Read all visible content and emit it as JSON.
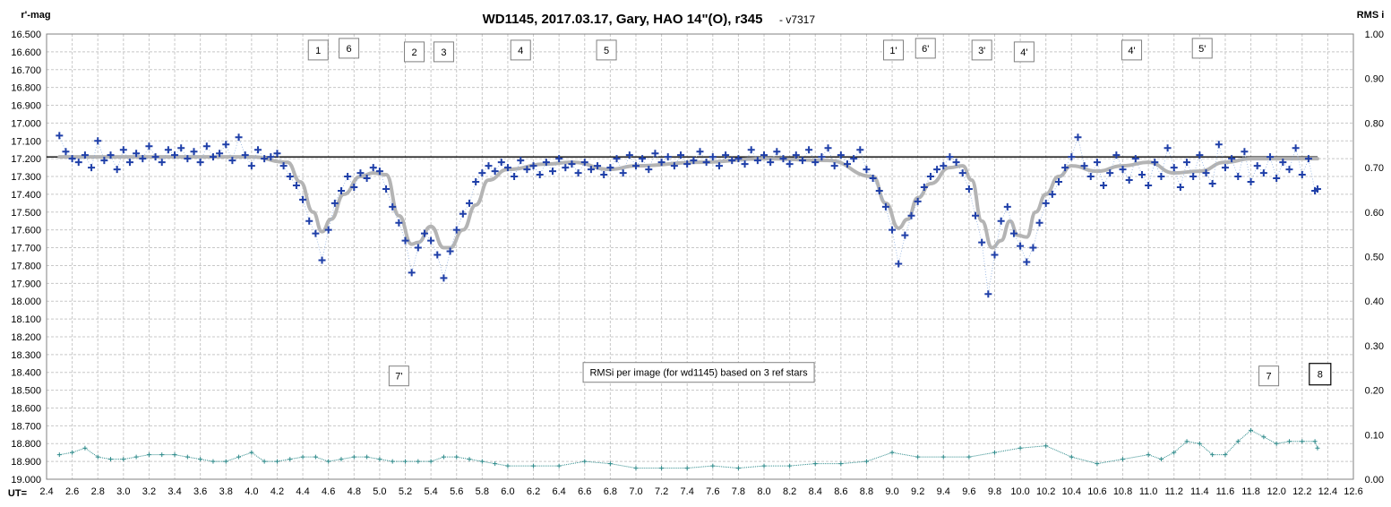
{
  "chart_data": {
    "type": "scatter",
    "title": "WD1145, 2017.03.17,  Gary, HAO 14\"(O), r345",
    "subtitle": "- v7317",
    "ylabel": "r'-mag",
    "y2label": "RMS i",
    "xlabel": "UT=",
    "xlim": [
      2.4,
      12.6
    ],
    "ylim": [
      19.0,
      16.5
    ],
    "y2lim": [
      0.0,
      1.0
    ],
    "x_ticks": [
      "2.4",
      "2.6",
      "2.8",
      "3.0",
      "3.2",
      "3.4",
      "3.6",
      "3.8",
      "4.0",
      "4.2",
      "4.4",
      "4.6",
      "4.8",
      "5.0",
      "5.2",
      "5.4",
      "5.6",
      "5.8",
      "6.0",
      "6.2",
      "6.4",
      "6.6",
      "6.8",
      "7.0",
      "7.2",
      "7.4",
      "7.6",
      "7.8",
      "8.0",
      "8.2",
      "8.4",
      "8.6",
      "8.8",
      "9.0",
      "9.2",
      "9.4",
      "9.6",
      "9.8",
      "10.0",
      "10.2",
      "10.4",
      "10.6",
      "10.8",
      "11.0",
      "11.2",
      "11.4",
      "11.6",
      "11.8",
      "12.0",
      "12.2",
      "12.4",
      "12.6"
    ],
    "y_ticks": [
      "16.500",
      "16.600",
      "16.700",
      "16.800",
      "16.900",
      "17.000",
      "17.100",
      "17.200",
      "17.300",
      "17.400",
      "17.500",
      "17.600",
      "17.700",
      "17.800",
      "17.900",
      "18.000",
      "18.100",
      "18.200",
      "18.300",
      "18.400",
      "18.500",
      "18.600",
      "18.700",
      "18.800",
      "18.900",
      "19.000"
    ],
    "y2_ticks": [
      "1.00",
      "0.90",
      "0.80",
      "0.70",
      "0.60",
      "0.50",
      "0.40",
      "0.30",
      "0.20",
      "0.10",
      "0.00"
    ],
    "grid": true,
    "reference_level": 17.19,
    "colors": {
      "data_points": "#1f3fa8",
      "fit_curve": "#b4b4b4",
      "reference_line": "#000000",
      "rms_series": "#2e8b8b",
      "grid": "#c8c8c8"
    },
    "dip_markers": [
      {
        "label": "1",
        "x": 4.52,
        "y": 16.59
      },
      {
        "label": "6",
        "x": 4.76,
        "y": 16.58
      },
      {
        "label": "2",
        "x": 5.27,
        "y": 16.6
      },
      {
        "label": "3",
        "x": 5.5,
        "y": 16.6
      },
      {
        "label": "4",
        "x": 6.1,
        "y": 16.59
      },
      {
        "label": "5",
        "x": 6.77,
        "y": 16.59
      },
      {
        "label": "1'",
        "x": 9.01,
        "y": 16.59
      },
      {
        "label": "6'",
        "x": 9.26,
        "y": 16.58
      },
      {
        "label": "3'",
        "x": 9.7,
        "y": 16.59
      },
      {
        "label": "4'",
        "x": 10.03,
        "y": 16.6
      },
      {
        "label": "4'",
        "x": 10.87,
        "y": 16.59
      },
      {
        "label": "5'",
        "x": 11.42,
        "y": 16.58
      },
      {
        "label": "7'",
        "x": 5.15,
        "y": 18.42
      },
      {
        "label": "7",
        "x": 11.94,
        "y": 18.42
      }
    ],
    "boxed_markers": [
      {
        "label": "8",
        "x": 12.34,
        "y": 18.41
      }
    ],
    "annotation": {
      "text": "RMSi per image (for wd1145) based on 3 ref stars",
      "x": 7.49,
      "y": 18.4
    },
    "fit_curve": {
      "x": [
        2.5,
        3.0,
        3.5,
        4.0,
        4.28,
        4.38,
        4.48,
        4.55,
        4.62,
        4.72,
        4.85,
        4.95,
        5.05,
        5.15,
        5.25,
        5.3,
        5.4,
        5.5,
        5.55,
        5.65,
        5.75,
        5.85,
        6.0,
        6.3,
        6.5,
        6.8,
        7.0,
        7.5,
        8.0,
        8.5,
        8.85,
        8.95,
        9.05,
        9.12,
        9.2,
        9.3,
        9.45,
        9.55,
        9.62,
        9.7,
        9.78,
        9.85,
        9.92,
        9.98,
        10.05,
        10.12,
        10.2,
        10.3,
        10.4,
        10.6,
        10.8,
        11.0,
        11.2,
        11.4,
        11.6,
        11.8,
        12.0,
        12.32
      ],
      "y": [
        17.19,
        17.19,
        17.19,
        17.19,
        17.22,
        17.33,
        17.5,
        17.61,
        17.54,
        17.4,
        17.3,
        17.28,
        17.29,
        17.52,
        17.68,
        17.67,
        17.58,
        17.7,
        17.7,
        17.6,
        17.46,
        17.32,
        17.26,
        17.23,
        17.22,
        17.26,
        17.24,
        17.22,
        17.2,
        17.21,
        17.3,
        17.45,
        17.59,
        17.54,
        17.42,
        17.34,
        17.25,
        17.24,
        17.32,
        17.55,
        17.7,
        17.66,
        17.55,
        17.63,
        17.64,
        17.5,
        17.4,
        17.3,
        17.24,
        17.27,
        17.24,
        17.22,
        17.28,
        17.27,
        17.22,
        17.2,
        17.2,
        17.2
      ]
    },
    "series": [
      {
        "name": "wd1145",
        "x": [
          2.5,
          2.55,
          2.6,
          2.65,
          2.7,
          2.75,
          2.8,
          2.85,
          2.9,
          2.95,
          3.0,
          3.05,
          3.1,
          3.15,
          3.2,
          3.25,
          3.3,
          3.35,
          3.4,
          3.45,
          3.5,
          3.55,
          3.6,
          3.65,
          3.7,
          3.75,
          3.8,
          3.85,
          3.9,
          3.95,
          4.0,
          4.05,
          4.1,
          4.15,
          4.2,
          4.25,
          4.3,
          4.35,
          4.4,
          4.45,
          4.5,
          4.55,
          4.6,
          4.65,
          4.7,
          4.75,
          4.8,
          4.85,
          4.9,
          4.95,
          5.0,
          5.05,
          5.1,
          5.15,
          5.2,
          5.25,
          5.3,
          5.35,
          5.4,
          5.45,
          5.5,
          5.55,
          5.6,
          5.65,
          5.7,
          5.75,
          5.8,
          5.85,
          5.9,
          5.95,
          6.0,
          6.05,
          6.1,
          6.15,
          6.2,
          6.25,
          6.3,
          6.35,
          6.4,
          6.45,
          6.5,
          6.55,
          6.6,
          6.65,
          6.7,
          6.75,
          6.8,
          6.85,
          6.9,
          6.95,
          7.0,
          7.05,
          7.1,
          7.15,
          7.2,
          7.25,
          7.3,
          7.35,
          7.4,
          7.45,
          7.5,
          7.55,
          7.6,
          7.65,
          7.7,
          7.75,
          7.8,
          7.85,
          7.9,
          7.95,
          8.0,
          8.05,
          8.1,
          8.15,
          8.2,
          8.25,
          8.3,
          8.35,
          8.4,
          8.45,
          8.5,
          8.55,
          8.6,
          8.65,
          8.7,
          8.75,
          8.8,
          8.85,
          8.9,
          8.95,
          9.0,
          9.05,
          9.1,
          9.15,
          9.2,
          9.25,
          9.3,
          9.35,
          9.4,
          9.45,
          9.5,
          9.55,
          9.6,
          9.65,
          9.7,
          9.75,
          9.8,
          9.85,
          9.9,
          9.95,
          10.0,
          10.05,
          10.1,
          10.15,
          10.2,
          10.25,
          10.3,
          10.35,
          10.4,
          10.45,
          10.5,
          10.55,
          10.6,
          10.65,
          10.7,
          10.75,
          10.8,
          10.85,
          10.9,
          10.95,
          11.0,
          11.05,
          11.1,
          11.15,
          11.2,
          11.25,
          11.3,
          11.35,
          11.4,
          11.45,
          11.5,
          11.55,
          11.6,
          11.65,
          11.7,
          11.75,
          11.8,
          11.85,
          11.9,
          11.95,
          12.0,
          12.05,
          12.1,
          12.15,
          12.2,
          12.25,
          12.3,
          12.32
        ],
        "y": [
          17.07,
          17.16,
          17.2,
          17.22,
          17.18,
          17.25,
          17.1,
          17.21,
          17.18,
          17.26,
          17.15,
          17.22,
          17.17,
          17.2,
          17.13,
          17.19,
          17.22,
          17.15,
          17.18,
          17.14,
          17.2,
          17.16,
          17.22,
          17.13,
          17.19,
          17.17,
          17.12,
          17.21,
          17.08,
          17.18,
          17.24,
          17.15,
          17.2,
          17.19,
          17.17,
          17.24,
          17.3,
          17.35,
          17.43,
          17.55,
          17.62,
          17.77,
          17.6,
          17.45,
          17.38,
          17.3,
          17.36,
          17.28,
          17.31,
          17.25,
          17.27,
          17.37,
          17.47,
          17.56,
          17.66,
          17.84,
          17.7,
          17.62,
          17.66,
          17.74,
          17.87,
          17.72,
          17.6,
          17.51,
          17.45,
          17.33,
          17.28,
          17.24,
          17.27,
          17.22,
          17.25,
          17.3,
          17.21,
          17.26,
          17.24,
          17.29,
          17.22,
          17.27,
          17.2,
          17.25,
          17.23,
          17.28,
          17.22,
          17.26,
          17.24,
          17.29,
          17.25,
          17.2,
          17.28,
          17.18,
          17.24,
          17.2,
          17.26,
          17.17,
          17.22,
          17.19,
          17.24,
          17.18,
          17.23,
          17.21,
          17.16,
          17.22,
          17.19,
          17.24,
          17.18,
          17.21,
          17.2,
          17.23,
          17.15,
          17.21,
          17.18,
          17.22,
          17.16,
          17.2,
          17.23,
          17.18,
          17.21,
          17.15,
          17.22,
          17.19,
          17.14,
          17.24,
          17.18,
          17.23,
          17.2,
          17.15,
          17.26,
          17.31,
          17.38,
          17.47,
          17.6,
          17.79,
          17.63,
          17.52,
          17.44,
          17.36,
          17.3,
          17.26,
          17.24,
          17.19,
          17.22,
          17.28,
          17.37,
          17.52,
          17.67,
          17.96,
          17.74,
          17.55,
          17.47,
          17.62,
          17.69,
          17.78,
          17.7,
          17.56,
          17.45,
          17.4,
          17.33,
          17.25,
          17.19,
          17.08,
          17.24,
          17.3,
          17.22,
          17.35,
          17.28,
          17.18,
          17.26,
          17.32,
          17.2,
          17.29,
          17.35,
          17.22,
          17.3,
          17.14,
          17.25,
          17.36,
          17.22,
          17.3,
          17.18,
          17.28,
          17.34,
          17.12,
          17.25,
          17.2,
          17.3,
          17.16,
          17.33,
          17.24,
          17.28,
          17.19,
          17.31,
          17.22,
          17.26,
          17.14,
          17.29,
          17.2,
          17.38,
          17.37
        ]
      },
      {
        "name": "RMS i",
        "axis": "y2",
        "x": [
          2.5,
          2.6,
          2.7,
          2.8,
          2.9,
          3.0,
          3.1,
          3.2,
          3.3,
          3.4,
          3.5,
          3.6,
          3.7,
          3.8,
          3.9,
          4.0,
          4.1,
          4.2,
          4.3,
          4.4,
          4.5,
          4.6,
          4.7,
          4.8,
          4.9,
          5.0,
          5.1,
          5.2,
          5.3,
          5.4,
          5.5,
          5.6,
          5.7,
          5.8,
          5.9,
          6.0,
          6.2,
          6.4,
          6.6,
          6.8,
          7.0,
          7.2,
          7.4,
          7.6,
          7.8,
          8.0,
          8.2,
          8.4,
          8.6,
          8.8,
          9.0,
          9.2,
          9.4,
          9.6,
          9.8,
          10.0,
          10.2,
          10.4,
          10.6,
          10.8,
          11.0,
          11.1,
          11.2,
          11.3,
          11.4,
          11.5,
          11.6,
          11.7,
          11.8,
          11.9,
          12.0,
          12.1,
          12.2,
          12.3,
          12.32
        ],
        "y": [
          0.055,
          0.06,
          0.07,
          0.05,
          0.045,
          0.045,
          0.05,
          0.055,
          0.055,
          0.055,
          0.05,
          0.045,
          0.04,
          0.04,
          0.05,
          0.06,
          0.04,
          0.04,
          0.045,
          0.05,
          0.05,
          0.04,
          0.045,
          0.05,
          0.05,
          0.045,
          0.04,
          0.04,
          0.04,
          0.04,
          0.05,
          0.05,
          0.045,
          0.04,
          0.035,
          0.03,
          0.03,
          0.03,
          0.04,
          0.035,
          0.025,
          0.025,
          0.025,
          0.03,
          0.025,
          0.03,
          0.03,
          0.035,
          0.035,
          0.04,
          0.06,
          0.05,
          0.05,
          0.05,
          0.06,
          0.07,
          0.075,
          0.05,
          0.035,
          0.045,
          0.055,
          0.045,
          0.06,
          0.085,
          0.08,
          0.055,
          0.055,
          0.085,
          0.11,
          0.095,
          0.08,
          0.085,
          0.085,
          0.085,
          0.07
        ]
      }
    ]
  }
}
